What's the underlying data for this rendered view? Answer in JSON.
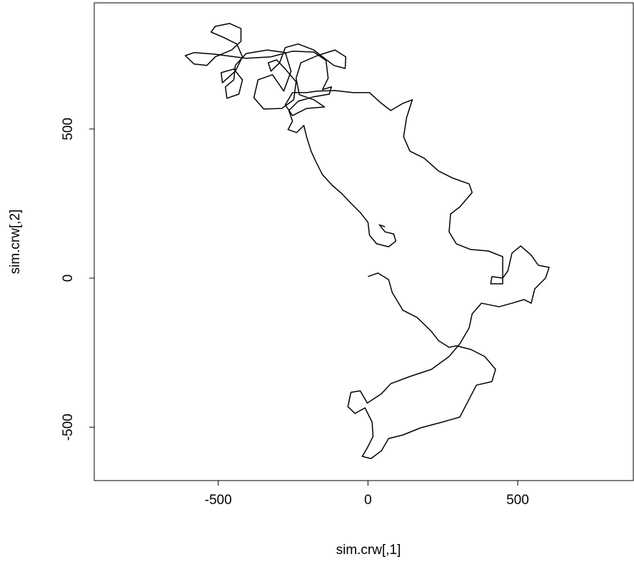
{
  "chart_data": {
    "type": "line",
    "xlabel": "sim.crw[,1]",
    "ylabel": "sim.crw[,2]",
    "xlim": [
      -914,
      886
    ],
    "ylim": [
      -679,
      923
    ],
    "xticks": [
      -500,
      0,
      500
    ],
    "yticks": [
      -500,
      0,
      500
    ],
    "color": "#000000",
    "x": [
      0,
      33,
      69,
      81,
      117,
      164,
      212,
      236,
      271,
      295,
      343,
      390,
      426,
      414,
      362,
      331,
      307,
      248,
      176,
      117,
      69,
      45,
      10,
      -19,
      -2,
      17,
      14,
      -10,
      -43,
      -67,
      -57,
      -26,
      -2,
      45,
      76,
      140,
      212,
      271,
      307,
      338,
      348,
      379,
      438,
      481,
      521,
      545,
      557,
      593,
      605,
      569,
      545,
      510,
      481,
      467,
      450,
      414,
      410,
      450,
      450,
      402,
      343,
      295,
      271,
      276,
      307,
      348,
      338,
      284,
      236,
      188,
      140,
      119,
      129,
      148,
      117,
      76,
      45,
      5,
      -50,
      -110,
      -169,
      -205,
      -252,
      -276,
      -252,
      -205,
      -145,
      -181,
      -229,
      -240,
      -224,
      -169,
      -110,
      -74,
      -76,
      -114,
      -181,
      -233,
      -276,
      -295,
      -324,
      -333,
      -305,
      -276,
      -240,
      -248,
      -288,
      -348,
      -381,
      -367,
      -319,
      -281,
      -257,
      -276,
      -336,
      -407,
      -443,
      -448,
      -476,
      -471,
      -431,
      -419,
      -448,
      -490,
      -486,
      -443,
      -419,
      -438,
      -486,
      -524,
      -510,
      -462,
      -424,
      -424,
      -455,
      -510,
      -538,
      -581,
      -610,
      -581,
      -514,
      -407,
      -324,
      -252,
      -181,
      -140,
      -133,
      -152,
      -122,
      -129,
      -181,
      -233,
      -264,
      -252,
      -267,
      -238,
      -214,
      -205,
      -190,
      -176,
      -152,
      -119,
      -86,
      -57,
      -26,
      0,
      5,
      29,
      69,
      93,
      86,
      57,
      38,
      57
    ],
    "y": [
      5,
      17,
      -5,
      -48,
      -108,
      -132,
      -179,
      -210,
      -232,
      -227,
      -239,
      -263,
      -306,
      -347,
      -359,
      -419,
      -466,
      -483,
      -502,
      -526,
      -538,
      -579,
      -605,
      -598,
      -569,
      -531,
      -483,
      -435,
      -454,
      -431,
      -383,
      -378,
      -419,
      -388,
      -354,
      -330,
      -306,
      -263,
      -220,
      -167,
      -120,
      -84,
      -96,
      -84,
      -72,
      -84,
      -36,
      0,
      36,
      43,
      77,
      108,
      84,
      24,
      0,
      5,
      -19,
      -19,
      72,
      91,
      96,
      115,
      155,
      215,
      239,
      287,
      316,
      335,
      359,
      402,
      426,
      474,
      538,
      598,
      586,
      562,
      586,
      622,
      622,
      629,
      627,
      622,
      622,
      581,
      545,
      569,
      574,
      598,
      615,
      670,
      722,
      746,
      765,
      742,
      703,
      713,
      765,
      785,
      773,
      722,
      694,
      722,
      732,
      701,
      658,
      598,
      569,
      567,
      605,
      665,
      682,
      627,
      694,
      756,
      765,
      753,
      713,
      665,
      641,
      603,
      617,
      665,
      701,
      689,
      655,
      694,
      742,
      785,
      809,
      825,
      844,
      854,
      837,
      794,
      765,
      742,
      713,
      718,
      746,
      756,
      751,
      737,
      742,
      761,
      758,
      730,
      670,
      632,
      641,
      617,
      608,
      593,
      562,
      526,
      498,
      488,
      512,
      474,
      426,
      395,
      347,
      311,
      282,
      251,
      220,
      187,
      144,
      115,
      105,
      124,
      148,
      155,
      179,
      172
    ]
  }
}
